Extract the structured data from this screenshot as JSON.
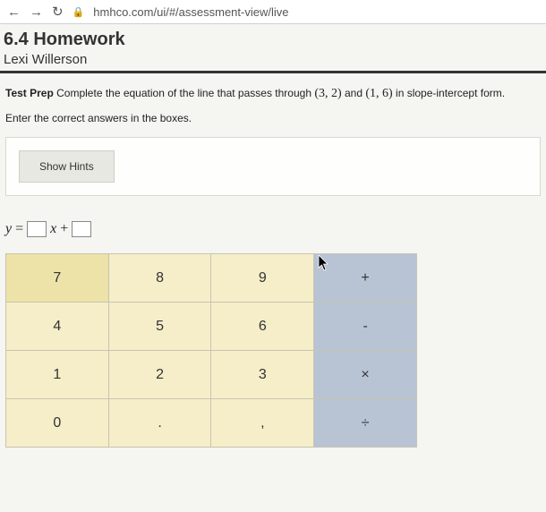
{
  "browser": {
    "url": "hmhco.com/ui/#/assessment-view/live"
  },
  "header": {
    "title": "6.4 Homework",
    "student": "Lexi Willerson"
  },
  "question": {
    "prefix": "Test Prep",
    "text_a": " Complete the equation of the line that passes through ",
    "coord1": "(3, 2)",
    "mid": " and ",
    "coord2": "(1, 6)",
    "text_b": " in slope-intercept form.",
    "instruction": "Enter the correct answers in the boxes.",
    "hint_button": "Show Hints"
  },
  "equation": {
    "y": "y",
    "eq": "=",
    "x": "x",
    "plus": "+"
  },
  "keypad": {
    "rows": [
      {
        "cells": [
          {
            "label": "7",
            "cls": "num sel"
          },
          {
            "label": "8",
            "cls": "num"
          },
          {
            "label": "9",
            "cls": "num"
          },
          {
            "label": "+",
            "cls": "op"
          }
        ]
      },
      {
        "cells": [
          {
            "label": "4",
            "cls": "num"
          },
          {
            "label": "5",
            "cls": "num"
          },
          {
            "label": "6",
            "cls": "num"
          },
          {
            "label": "-",
            "cls": "op"
          }
        ]
      },
      {
        "cells": [
          {
            "label": "1",
            "cls": "num"
          },
          {
            "label": "2",
            "cls": "num"
          },
          {
            "label": "3",
            "cls": "num"
          },
          {
            "label": "×",
            "cls": "op"
          }
        ]
      },
      {
        "cells": [
          {
            "label": "0",
            "cls": "num"
          },
          {
            "label": ".",
            "cls": "num"
          },
          {
            "label": ",",
            "cls": "num"
          },
          {
            "label": "÷",
            "cls": "op"
          }
        ]
      }
    ]
  }
}
